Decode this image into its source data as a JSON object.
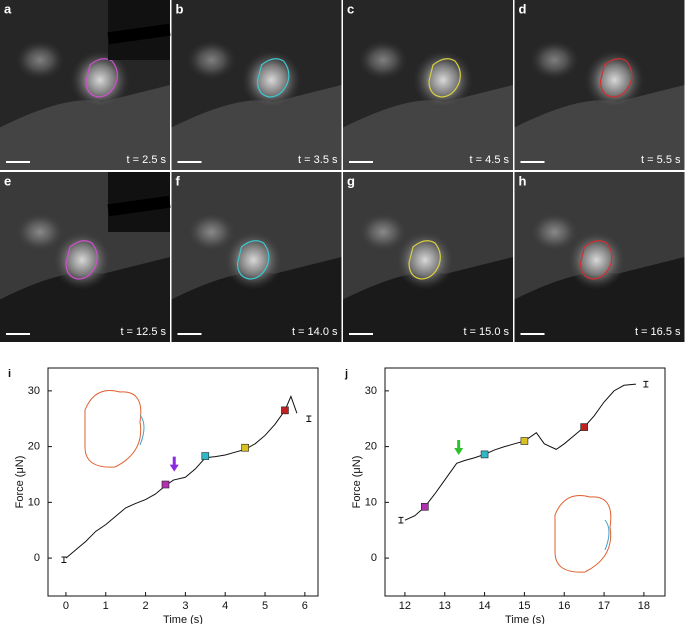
{
  "panels": [
    {
      "label": "a",
      "time": "t = 2.5 s",
      "color": "#d04fd0"
    },
    {
      "label": "b",
      "time": "t = 3.5 s",
      "color": "#3cc8d0"
    },
    {
      "label": "c",
      "time": "t = 4.5 s",
      "color": "#d8d040"
    },
    {
      "label": "d",
      "time": "t = 5.5 s",
      "color": "#d03030"
    },
    {
      "label": "e",
      "time": "t = 12.5 s",
      "color": "#d04fd0"
    },
    {
      "label": "f",
      "time": "t = 14.0 s",
      "color": "#3cc8d0"
    },
    {
      "label": "g",
      "time": "t = 15.0 s",
      "color": "#d8d040"
    },
    {
      "label": "h",
      "time": "t = 16.5 s",
      "color": "#d03030"
    }
  ],
  "chart_data": [
    {
      "type": "line",
      "panel": "i",
      "x_label": "Time (s)",
      "y_label": "Force (μN)",
      "x": [
        0,
        0.25,
        0.5,
        0.75,
        1,
        1.25,
        1.5,
        1.75,
        2,
        2.25,
        2.5,
        2.7,
        3,
        3.25,
        3.5,
        3.75,
        4,
        4.25,
        4.5,
        4.75,
        5,
        5.25,
        5.5,
        5.65,
        5.8
      ],
      "values": [
        0,
        1.5,
        3,
        4.8,
        6,
        7.5,
        9,
        9.8,
        10.5,
        11.5,
        13,
        14,
        14.5,
        16,
        18,
        18.2,
        18.5,
        19,
        19.5,
        20.5,
        22,
        24,
        26.5,
        29,
        26
      ],
      "color": "#111111",
      "markers": {
        "x": [
          2.5,
          3.5,
          4.5,
          5.5
        ],
        "values": [
          13.2,
          18.3,
          19.8,
          26.5
        ],
        "colors": [
          "#b030b0",
          "#30b8c8",
          "#d8c020",
          "#c02020"
        ]
      },
      "error_bars": {
        "x": [
          -0.05,
          6.1
        ],
        "values": [
          -0.3,
          25
        ],
        "errors": [
          0.5,
          0.5
        ]
      },
      "arrow": {
        "x": 2.72,
        "y": 15.5,
        "color": "#8a2be2"
      },
      "xlim": [
        -0.45,
        6.33
      ],
      "ylim": [
        -6.8,
        34.1
      ],
      "xticks": [
        0,
        1,
        2,
        3,
        4,
        5,
        6
      ],
      "yticks": [
        0,
        10,
        20,
        30
      ]
    },
    {
      "type": "line",
      "panel": "j",
      "x_label": "Time (s)",
      "y_label": "Force (μN)",
      "x": [
        12,
        12.25,
        12.5,
        12.75,
        13,
        13.3,
        13.5,
        13.75,
        14,
        14.25,
        14.5,
        14.75,
        15,
        15.3,
        15.5,
        15.8,
        16,
        16.25,
        16.5,
        16.75,
        17,
        17.25,
        17.5,
        17.8
      ],
      "values": [
        6.8,
        7.6,
        9.2,
        11.5,
        14,
        17,
        17.5,
        18,
        18.6,
        19.4,
        20,
        20.5,
        21,
        22.5,
        20.5,
        19.5,
        20.5,
        22,
        23.5,
        25.5,
        28,
        30,
        31,
        31.2
      ],
      "color": "#111111",
      "markers": {
        "x": [
          12.5,
          14,
          15,
          16.5
        ],
        "values": [
          9.2,
          18.6,
          21,
          23.5
        ],
        "colors": [
          "#b030b0",
          "#30b8c8",
          "#d8c020",
          "#c02020"
        ]
      },
      "error_bars": {
        "x": [
          11.9,
          18.05
        ],
        "values": [
          6.8,
          31.2
        ],
        "errors": [
          0.5,
          0.5
        ]
      },
      "arrow": {
        "x": 13.35,
        "y": 18.5,
        "color": "#2ec02e"
      },
      "xlim": [
        11.5,
        18.53
      ],
      "ylim": [
        -6.8,
        34.1
      ],
      "xticks": [
        12,
        13,
        14,
        15,
        16,
        17,
        18
      ],
      "yticks": [
        0,
        10,
        20,
        30
      ]
    }
  ]
}
